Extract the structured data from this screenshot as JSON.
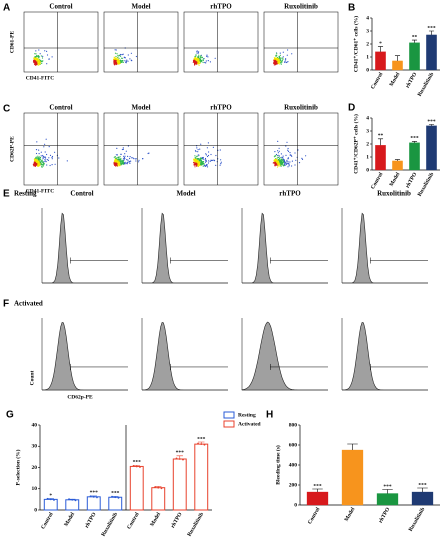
{
  "scatter_rows": [
    {
      "letter": "A",
      "titles": [
        "Control",
        "Model",
        "rhTPO",
        "Ruxolitinib"
      ],
      "x_label": "CD41-FITC",
      "y_label": "CD61-PE"
    },
    {
      "letter": "C",
      "titles": [
        "Control",
        "Model",
        "rhTPO",
        "Ruxolitinib"
      ],
      "x_label": "CD41-FITC",
      "y_label": "CD62P-PE"
    }
  ],
  "histogram_rows": [
    {
      "letter": "E",
      "state": "Resting",
      "titles": [
        "Control",
        "Model",
        "rhTPO",
        "Ruxolitinib"
      ]
    },
    {
      "letter": "F",
      "state": "Activated",
      "y_label": "Count",
      "x_label": "CD62p-PE"
    }
  ],
  "chart_data": [
    {
      "type": "bar",
      "letter": "B",
      "y_label": "CD41⁺/CD61⁺ cells (%)",
      "categories": [
        "Control",
        "Model",
        "rhTPO",
        "Ruxolitinib"
      ],
      "values": [
        1.4,
        0.7,
        2.1,
        2.7
      ],
      "errors": [
        0.4,
        0.4,
        0.2,
        0.3
      ],
      "annotations": [
        "*",
        null,
        "**",
        "***"
      ],
      "colors": [
        "#d7191c",
        "#f7941d",
        "#1a9641",
        "#1f3a73"
      ],
      "ylim": [
        0,
        4
      ],
      "yticks": [
        0,
        1,
        2,
        3,
        4
      ]
    },
    {
      "type": "bar",
      "letter": "D",
      "y_label": "CD41⁺/CD62P⁺ cells (%)",
      "categories": [
        "Control",
        "Model",
        "rhTPO",
        "Ruxolitinib"
      ],
      "values": [
        1.9,
        0.7,
        2.1,
        3.4
      ],
      "errors": [
        0.5,
        0.1,
        0.1,
        0.1
      ],
      "annotations": [
        "**",
        null,
        "***",
        "***"
      ],
      "colors": [
        "#d7191c",
        "#f7941d",
        "#1a9641",
        "#1f3a73"
      ],
      "ylim": [
        0,
        4
      ],
      "yticks": [
        0,
        1,
        2,
        3,
        4
      ]
    },
    {
      "type": "grouped_bar",
      "letter": "G",
      "y_label": "P-selection (%)",
      "categories": [
        "Control",
        "Model",
        "rhTPO",
        "Ruxolitinib"
      ],
      "series": [
        {
          "name": "Resting",
          "color": "#2a5bd7",
          "values": [
            5,
            4.8,
            6.2,
            6
          ],
          "errors": [
            0.4,
            0.3,
            0.4,
            0.4
          ],
          "annotations": [
            "*",
            null,
            "***",
            "***"
          ]
        },
        {
          "name": "Activated",
          "color": "#e8412c",
          "values": [
            20.5,
            10.5,
            24,
            31
          ],
          "errors": [
            0.5,
            0.6,
            1.5,
            1
          ],
          "annotations": [
            "***",
            null,
            "***",
            "***"
          ]
        }
      ],
      "legend": "upper-right",
      "ylim": [
        0,
        40
      ],
      "yticks": [
        0,
        10,
        20,
        30,
        40
      ]
    },
    {
      "type": "bar",
      "letter": "H",
      "y_label": "Bleeding time (s)",
      "categories": [
        "Control",
        "Model",
        "rhTPO",
        "Ruxolitinib"
      ],
      "values": [
        130,
        550,
        115,
        130
      ],
      "errors": [
        30,
        60,
        40,
        40
      ],
      "annotations": [
        "***",
        null,
        "***",
        "***"
      ],
      "colors": [
        "#d7191c",
        "#f7941d",
        "#1a9641",
        "#1f3a73"
      ],
      "ylim": [
        0,
        800
      ],
      "yticks": [
        0,
        200,
        400,
        600,
        800
      ]
    }
  ]
}
